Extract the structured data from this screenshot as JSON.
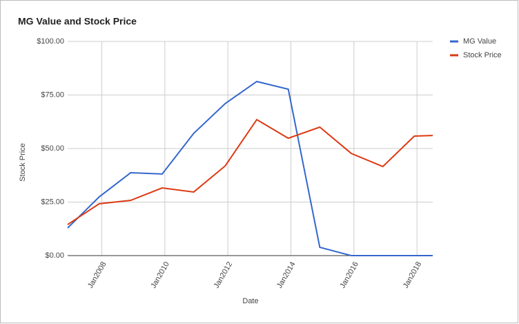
{
  "chart_data": {
    "type": "line",
    "title": "MG Value and Stock Price",
    "x_label": "Date",
    "y_label": "Stock Price",
    "x": [
      "2006-12",
      "2007-12",
      "2008-12",
      "2009-12",
      "2010-12",
      "2011-12",
      "2012-12",
      "2013-12",
      "2014-12",
      "2015-12",
      "2016-12",
      "2017-12",
      "2018-07"
    ],
    "series": [
      {
        "name": "MG Value",
        "color": "#3366cc",
        "values": [
          12.9,
          27.4,
          38.7,
          38.1,
          57.1,
          71.0,
          81.3,
          77.7,
          3.9,
          0,
          0,
          0,
          0
        ]
      },
      {
        "name": "Stock Price",
        "color": "#dc3912",
        "values": [
          14.5,
          24.2,
          25.8,
          31.6,
          29.7,
          41.9,
          63.5,
          54.8,
          60.0,
          47.7,
          41.6,
          55.8,
          56.1
        ]
      }
    ],
    "xlim": [
      "2006-12",
      "2018-07"
    ],
    "xticks": [
      {
        "value": "2008-01",
        "label": "Jan2008"
      },
      {
        "value": "2010-01",
        "label": "Jan2010"
      },
      {
        "value": "2012-01",
        "label": "Jan2012"
      },
      {
        "value": "2014-01",
        "label": "Jan2014"
      },
      {
        "value": "2016-01",
        "label": "Jan2016"
      },
      {
        "value": "2018-01",
        "label": "Jan2018"
      }
    ],
    "ylim": [
      0,
      100
    ],
    "yticks": [
      {
        "value": 0,
        "label": "$0.00"
      },
      {
        "value": 25,
        "label": "$25.00"
      },
      {
        "value": 50,
        "label": "$50.00"
      },
      {
        "value": 75,
        "label": "$75.00"
      },
      {
        "value": 100,
        "label": "$100.00"
      }
    ],
    "grid": true,
    "legend_position": "right"
  }
}
